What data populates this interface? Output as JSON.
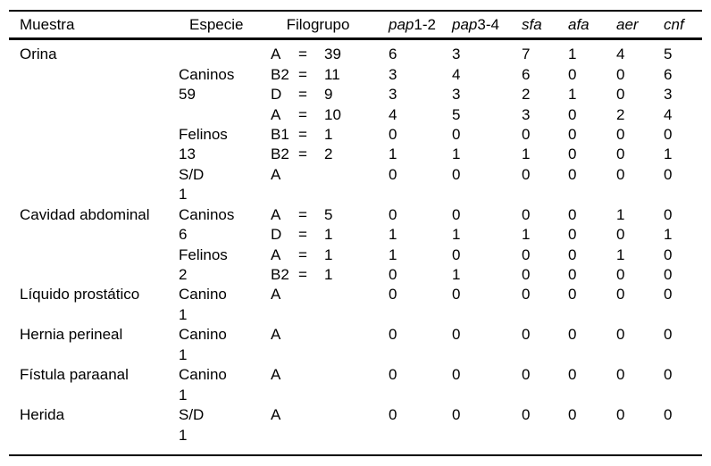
{
  "colors": {
    "background": "#ffffff",
    "text": "#000000",
    "rule": "#000000"
  },
  "table": {
    "columns": {
      "muestra": "Muestra",
      "especie": "Especie",
      "filogrupo": "Filogrupo",
      "gene_columns": [
        {
          "italic": "pap",
          "normal": "1-2"
        },
        {
          "italic": "pap",
          "normal": "3-4"
        },
        {
          "italic": "sfa",
          "normal": ""
        },
        {
          "italic": "afa",
          "normal": ""
        },
        {
          "italic": "aer",
          "normal": ""
        },
        {
          "italic": "cnf",
          "normal": ""
        }
      ]
    },
    "rows": [
      {
        "muestra": "Orina",
        "especie": "",
        "filo_group": "A",
        "filo_eq": "=",
        "filo_count": "39",
        "values": [
          "6",
          "3",
          "7",
          "1",
          "4",
          "5"
        ]
      },
      {
        "muestra": "",
        "especie": "Caninos",
        "filo_group": "B2",
        "filo_eq": "=",
        "filo_count": "11",
        "values": [
          "3",
          "4",
          "6",
          "0",
          "0",
          "6"
        ]
      },
      {
        "muestra": "",
        "especie": "59",
        "filo_group": "D",
        "filo_eq": "=",
        "filo_count": "9",
        "values": [
          "3",
          "3",
          "2",
          "1",
          "0",
          "3"
        ]
      },
      {
        "muestra": "",
        "especie": "",
        "filo_group": "A",
        "filo_eq": "=",
        "filo_count": "10",
        "values": [
          "4",
          "5",
          "3",
          "0",
          "2",
          "4"
        ]
      },
      {
        "muestra": "",
        "especie": "Felinos",
        "filo_group": "B1",
        "filo_eq": "=",
        "filo_count": "1",
        "values": [
          "0",
          "0",
          "0",
          "0",
          "0",
          "0"
        ]
      },
      {
        "muestra": "",
        "especie": "13",
        "filo_group": "B2",
        "filo_eq": "=",
        "filo_count": "2",
        "values": [
          "1",
          "1",
          "1",
          "0",
          "0",
          "1"
        ]
      },
      {
        "muestra": "",
        "especie": "S/D",
        "filo_group": "A",
        "filo_eq": "",
        "filo_count": "",
        "values": [
          "0",
          "0",
          "0",
          "0",
          "0",
          "0"
        ]
      },
      {
        "muestra": "",
        "especie": "1",
        "filo_group": "",
        "filo_eq": "",
        "filo_count": "",
        "values": [
          "",
          "",
          "",
          "",
          "",
          ""
        ]
      },
      {
        "muestra": "Cavidad abdominal",
        "especie": "Caninos",
        "filo_group": "A",
        "filo_eq": "=",
        "filo_count": "5",
        "values": [
          "0",
          "0",
          "0",
          "0",
          "1",
          "0"
        ]
      },
      {
        "muestra": "",
        "especie": "6",
        "filo_group": "D",
        "filo_eq": "=",
        "filo_count": "1",
        "values": [
          "1",
          "1",
          "1",
          "0",
          "0",
          "1"
        ]
      },
      {
        "muestra": "",
        "especie": "Felinos",
        "filo_group": "A",
        "filo_eq": "=",
        "filo_count": "1",
        "values": [
          "1",
          "0",
          "0",
          "0",
          "1",
          "0"
        ]
      },
      {
        "muestra": "",
        "especie": "2",
        "filo_group": "B2",
        "filo_eq": "=",
        "filo_count": "1",
        "values": [
          "0",
          "1",
          "0",
          "0",
          "0",
          "0"
        ]
      },
      {
        "muestra": "Líquido prostático",
        "especie": "Canino",
        "filo_group": "A",
        "filo_eq": "",
        "filo_count": "",
        "values": [
          "0",
          "0",
          "0",
          "0",
          "0",
          "0"
        ]
      },
      {
        "muestra": "",
        "especie": "1",
        "filo_group": "",
        "filo_eq": "",
        "filo_count": "",
        "values": [
          "",
          "",
          "",
          "",
          "",
          ""
        ]
      },
      {
        "muestra": "Hernia perineal",
        "especie": "Canino",
        "filo_group": "A",
        "filo_eq": "",
        "filo_count": "",
        "values": [
          "0",
          "0",
          "0",
          "0",
          "0",
          "0"
        ]
      },
      {
        "muestra": "",
        "especie": "1",
        "filo_group": "",
        "filo_eq": "",
        "filo_count": "",
        "values": [
          "",
          "",
          "",
          "",
          "",
          ""
        ]
      },
      {
        "muestra": "Fístula paraanal",
        "especie": "Canino",
        "filo_group": "A",
        "filo_eq": "",
        "filo_count": "",
        "values": [
          "0",
          "0",
          "0",
          "0",
          "0",
          "0"
        ]
      },
      {
        "muestra": "",
        "especie": "1",
        "filo_group": "",
        "filo_eq": "",
        "filo_count": "",
        "values": [
          "",
          "",
          "",
          "",
          "",
          ""
        ]
      },
      {
        "muestra": "Herida",
        "especie": "S/D",
        "filo_group": "A",
        "filo_eq": "",
        "filo_count": "",
        "values": [
          "0",
          "0",
          "0",
          "0",
          "0",
          "0"
        ]
      },
      {
        "muestra": "",
        "especie": "1",
        "filo_group": "",
        "filo_eq": "",
        "filo_count": "",
        "values": [
          "",
          "",
          "",
          "",
          "",
          ""
        ]
      }
    ]
  }
}
